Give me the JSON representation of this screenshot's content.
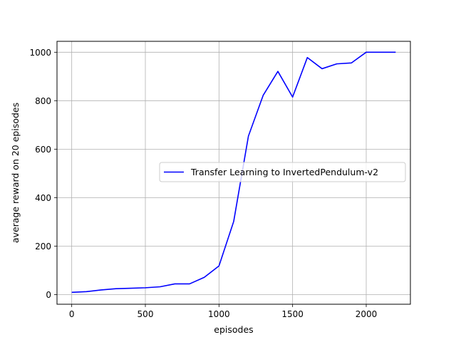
{
  "chart_data": {
    "type": "line",
    "title": "",
    "xlabel": "episodes",
    "ylabel": "average reward on 20 episodes",
    "xlim": [
      -100,
      2300
    ],
    "ylim": [
      -40,
      1045
    ],
    "xticks": [
      0,
      500,
      1000,
      1500,
      2000
    ],
    "yticks": [
      0,
      200,
      400,
      600,
      800,
      1000
    ],
    "grid": true,
    "legend_position": "center-right",
    "series": [
      {
        "name": "Transfer Learning to InvertedPendulum-v2",
        "color": "#0000ff",
        "x": [
          0,
          100,
          200,
          300,
          400,
          500,
          600,
          700,
          800,
          900,
          1000,
          1100,
          1200,
          1300,
          1400,
          1500,
          1600,
          1700,
          1800,
          1900,
          2000,
          2100,
          2200
        ],
        "y": [
          9,
          12,
          19,
          24,
          26,
          28,
          32,
          44,
          44,
          71,
          118,
          302,
          654,
          822,
          921,
          815,
          978,
          932,
          952,
          956,
          1000,
          1000,
          1000
        ]
      }
    ]
  }
}
